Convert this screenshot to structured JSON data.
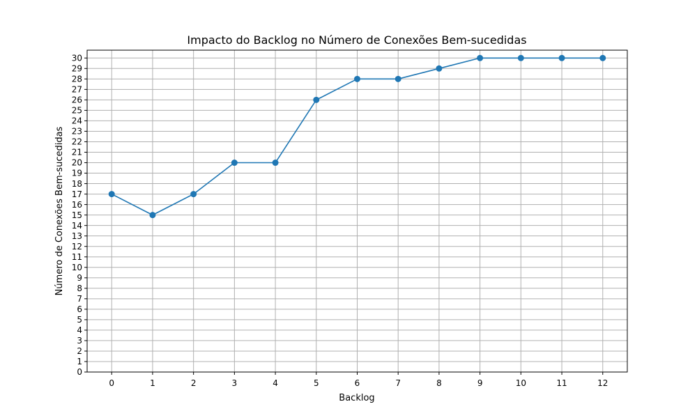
{
  "chart_data": {
    "type": "line",
    "title": "Impacto do Backlog no Número de Conexões Bem-sucedidas",
    "xlabel": "Backlog",
    "ylabel": "Número de Conexões Bem-sucedidas",
    "x": [
      0,
      1,
      2,
      3,
      4,
      5,
      6,
      7,
      8,
      9,
      10,
      11,
      12
    ],
    "series": [
      {
        "values": [
          17,
          15,
          17,
          20,
          20,
          26,
          28,
          28,
          29,
          30,
          30,
          30,
          30
        ]
      }
    ],
    "xticks": [
      0,
      1,
      2,
      3,
      4,
      5,
      6,
      7,
      8,
      9,
      10,
      11,
      12
    ],
    "yticks": [
      0,
      1,
      2,
      3,
      4,
      5,
      6,
      7,
      8,
      9,
      10,
      11,
      12,
      13,
      14,
      15,
      16,
      17,
      18,
      19,
      20,
      21,
      22,
      23,
      24,
      25,
      26,
      27,
      28,
      29,
      30
    ],
    "xlim": [
      -0.6,
      12.6
    ],
    "ylim": [
      0,
      30.75
    ],
    "grid": true,
    "line_color": "#1f77b4",
    "grid_color": "#b0b0b0",
    "marker": "circle"
  }
}
